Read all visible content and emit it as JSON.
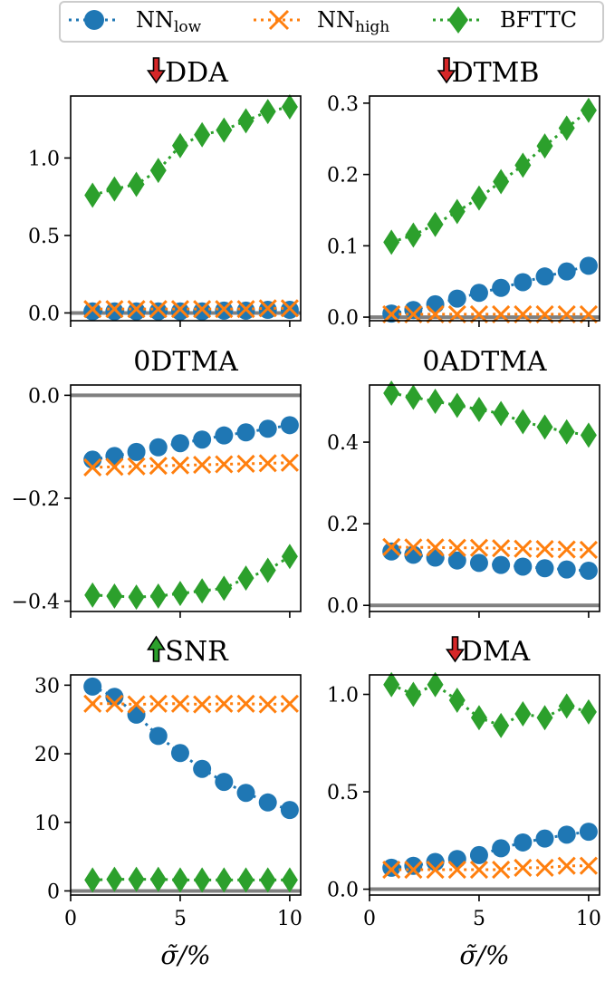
{
  "legend": {
    "entries": [
      {
        "label": "NN",
        "sub": "low"
      },
      {
        "label": "NN",
        "sub": "high"
      },
      {
        "label": "BFTTC",
        "sub": ""
      }
    ]
  },
  "colors": {
    "nn_low": "#1f77b4",
    "nn_high": "#ff7f0e",
    "bfttc": "#2ca02c",
    "zero_line": "#808080",
    "arrow_down": "#d62728",
    "arrow_up": "#2ca02c"
  },
  "xlabel": "σ̃/%",
  "chart_data": [
    {
      "type": "line",
      "title": "DDA",
      "arrow": "down",
      "xlabel": "",
      "ylabel": "",
      "x": [
        1,
        2,
        3,
        4,
        5,
        6,
        7,
        8,
        9,
        10
      ],
      "xlim": [
        0,
        10.5
      ],
      "ylim": [
        -0.05,
        1.4
      ],
      "xticks": [
        0,
        5,
        10
      ],
      "yticks": [
        0.0,
        0.5,
        1.0
      ],
      "ytick_labels": [
        "0.0",
        "0.5",
        "1.0"
      ],
      "series": [
        {
          "name": "NNlow",
          "values": [
            0.01,
            0.01,
            0.01,
            0.01,
            0.01,
            0.01,
            0.015,
            0.015,
            0.02,
            0.02
          ]
        },
        {
          "name": "NNhigh",
          "values": [
            0.025,
            0.025,
            0.025,
            0.025,
            0.025,
            0.025,
            0.025,
            0.025,
            0.03,
            0.03
          ]
        },
        {
          "name": "BFTTC",
          "values": [
            0.76,
            0.8,
            0.83,
            0.92,
            1.08,
            1.15,
            1.18,
            1.24,
            1.3,
            1.33
          ]
        }
      ]
    },
    {
      "type": "line",
      "title": "DTMB",
      "arrow": "down",
      "xlabel": "",
      "ylabel": "",
      "x": [
        1,
        2,
        3,
        4,
        5,
        6,
        7,
        8,
        9,
        10
      ],
      "xlim": [
        0,
        10.5
      ],
      "ylim": [
        -0.005,
        0.31
      ],
      "xticks": [
        0,
        5,
        10
      ],
      "yticks": [
        0.0,
        0.1,
        0.2,
        0.3
      ],
      "ytick_labels": [
        "0.0",
        "0.1",
        "0.2",
        "0.3"
      ],
      "series": [
        {
          "name": "NNlow",
          "values": [
            0.005,
            0.01,
            0.018,
            0.026,
            0.034,
            0.041,
            0.049,
            0.057,
            0.064,
            0.072
          ]
        },
        {
          "name": "NNhigh",
          "values": [
            0.004,
            0.004,
            0.004,
            0.004,
            0.004,
            0.004,
            0.004,
            0.004,
            0.004,
            0.004
          ]
        },
        {
          "name": "BFTTC",
          "values": [
            0.105,
            0.115,
            0.13,
            0.148,
            0.167,
            0.19,
            0.213,
            0.24,
            0.265,
            0.29
          ]
        }
      ]
    },
    {
      "type": "line",
      "title": "0DTMA",
      "arrow": "",
      "xlabel": "",
      "ylabel": "",
      "x": [
        1,
        2,
        3,
        4,
        5,
        6,
        7,
        8,
        9,
        10
      ],
      "xlim": [
        0,
        10.5
      ],
      "ylim": [
        -0.42,
        0.02
      ],
      "xticks": [
        0,
        5,
        10
      ],
      "yticks": [
        0.0,
        -0.2,
        -0.4
      ],
      "ytick_labels": [
        "0.0",
        "−0.2",
        "−0.4"
      ],
      "series": [
        {
          "name": "NNlow",
          "values": [
            -0.125,
            -0.118,
            -0.11,
            -0.101,
            -0.093,
            -0.086,
            -0.078,
            -0.072,
            -0.065,
            -0.058
          ]
        },
        {
          "name": "NNhigh",
          "values": [
            -0.14,
            -0.139,
            -0.138,
            -0.137,
            -0.136,
            -0.135,
            -0.134,
            -0.133,
            -0.132,
            -0.131
          ]
        },
        {
          "name": "BFTTC",
          "values": [
            -0.388,
            -0.39,
            -0.392,
            -0.39,
            -0.385,
            -0.38,
            -0.375,
            -0.355,
            -0.34,
            -0.313
          ]
        }
      ]
    },
    {
      "type": "line",
      "title": "0ADTMA",
      "arrow": "",
      "xlabel": "",
      "ylabel": "",
      "x": [
        1,
        2,
        3,
        4,
        5,
        6,
        7,
        8,
        9,
        10
      ],
      "xlim": [
        0,
        10.5
      ],
      "ylim": [
        -0.015,
        0.54
      ],
      "xticks": [
        0,
        5,
        10
      ],
      "yticks": [
        0.0,
        0.2,
        0.4
      ],
      "ytick_labels": [
        "0.0",
        "0.2",
        "0.4"
      ],
      "series": [
        {
          "name": "NNlow",
          "values": [
            0.132,
            0.124,
            0.117,
            0.11,
            0.104,
            0.099,
            0.095,
            0.091,
            0.088,
            0.085
          ]
        },
        {
          "name": "NNhigh",
          "values": [
            0.143,
            0.142,
            0.142,
            0.141,
            0.141,
            0.14,
            0.139,
            0.138,
            0.137,
            0.136
          ]
        },
        {
          "name": "BFTTC",
          "values": [
            0.52,
            0.51,
            0.5,
            0.49,
            0.48,
            0.47,
            0.45,
            0.437,
            0.425,
            0.417
          ]
        }
      ]
    },
    {
      "type": "line",
      "title": "SNR",
      "arrow": "up",
      "xlabel": "σ̃/%",
      "ylabel": "",
      "x": [
        1,
        2,
        3,
        4,
        5,
        6,
        7,
        8,
        9,
        10
      ],
      "xlim": [
        0,
        10.5
      ],
      "ylim": [
        -0.6,
        31.5
      ],
      "xticks": [
        0,
        5,
        10
      ],
      "yticks": [
        0,
        10,
        20,
        30
      ],
      "ytick_labels": [
        "0",
        "10",
        "20",
        "30"
      ],
      "series": [
        {
          "name": "NNlow",
          "values": [
            29.8,
            28.3,
            25.7,
            22.6,
            20.1,
            17.8,
            15.9,
            14.3,
            12.9,
            11.8
          ]
        },
        {
          "name": "NNhigh",
          "values": [
            27.3,
            27.3,
            27.2,
            27.3,
            27.3,
            27.2,
            27.3,
            27.3,
            27.2,
            27.3
          ]
        },
        {
          "name": "BFTTC",
          "values": [
            1.6,
            1.7,
            1.7,
            1.7,
            1.6,
            1.6,
            1.6,
            1.6,
            1.6,
            1.6
          ]
        }
      ]
    },
    {
      "type": "line",
      "title": "DMA",
      "arrow": "down",
      "xlabel": "σ̃/%",
      "ylabel": "",
      "x": [
        1,
        2,
        3,
        4,
        5,
        6,
        7,
        8,
        9,
        10
      ],
      "xlim": [
        0,
        10.5
      ],
      "ylim": [
        -0.03,
        1.1
      ],
      "xticks": [
        0,
        5,
        10
      ],
      "yticks": [
        0.0,
        0.5,
        1.0
      ],
      "ytick_labels": [
        "0.0",
        "0.5",
        "1.0"
      ],
      "series": [
        {
          "name": "NNlow",
          "values": [
            0.11,
            0.12,
            0.14,
            0.155,
            0.175,
            0.21,
            0.24,
            0.26,
            0.28,
            0.295
          ]
        },
        {
          "name": "NNhigh",
          "values": [
            0.1,
            0.1,
            0.1,
            0.1,
            0.1,
            0.1,
            0.11,
            0.11,
            0.12,
            0.12
          ]
        },
        {
          "name": "BFTTC",
          "values": [
            1.05,
            1.0,
            1.05,
            0.97,
            0.88,
            0.84,
            0.9,
            0.88,
            0.94,
            0.91
          ]
        }
      ]
    }
  ]
}
